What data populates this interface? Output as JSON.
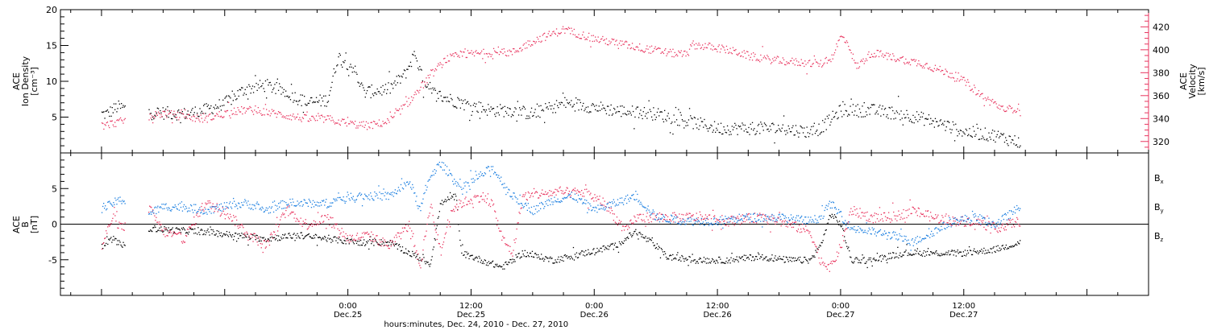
{
  "colors": {
    "black": "#000000",
    "pink": "#e8355f",
    "blue": "#1a7ee0"
  },
  "chart_data": [
    {
      "type": "scatter",
      "panel": "top",
      "left_axis": {
        "label_lines": [
          "ACE",
          "Ion Density",
          "[cm⁻³]"
        ],
        "ticks": [
          "20",
          "15",
          "10",
          "5"
        ],
        "tick_values": [
          20,
          15,
          10,
          5
        ],
        "ylim": [
          0,
          20
        ]
      },
      "right_axis": {
        "label_lines": [
          "ACE",
          "Velocity",
          "[km/s]"
        ],
        "ticks": [
          "420",
          "400",
          "380",
          "360",
          "340",
          "320"
        ],
        "tick_values": [
          420,
          400,
          380,
          360,
          340,
          320
        ],
        "ylim": [
          310,
          435
        ]
      },
      "series": [
        {
          "name": "",
          "axis": "left",
          "color": "#000000",
          "knots": [
            [
              0.0,
              5.5
            ],
            [
              0.5,
              5.5
            ],
            [
              1.0,
              6.0
            ],
            [
              1.5,
              6.5
            ],
            [
              4.0,
              5.8
            ],
            [
              8.0,
              5.5
            ],
            [
              10.0,
              6.0
            ],
            [
              12.0,
              7.0
            ],
            [
              14.0,
              9.0
            ],
            [
              16.0,
              9.5
            ],
            [
              18.0,
              8.5
            ],
            [
              20.0,
              7.0
            ],
            [
              22.0,
              7.5
            ],
            [
              23.0,
              13.5
            ],
            [
              24.5,
              12.0
            ],
            [
              25.5,
              8.5
            ],
            [
              28.0,
              9.0
            ],
            [
              29.5,
              11.0
            ],
            [
              30.5,
              14.0
            ],
            [
              31.5,
              9.0
            ],
            [
              33.0,
              8.0
            ],
            [
              35.0,
              7.0
            ],
            [
              38.0,
              6.0
            ],
            [
              40.0,
              6.0
            ],
            [
              42.0,
              5.5
            ],
            [
              45.0,
              7.0
            ],
            [
              48.0,
              6.5
            ],
            [
              50.0,
              6.0
            ],
            [
              54.0,
              5.5
            ],
            [
              57.0,
              4.5
            ],
            [
              60.0,
              3.5
            ],
            [
              63.0,
              3.5
            ],
            [
              66.0,
              3.5
            ],
            [
              69.0,
              3.0
            ],
            [
              70.0,
              3.5
            ],
            [
              72.0,
              6.0
            ],
            [
              75.0,
              6.0
            ],
            [
              78.0,
              5.5
            ],
            [
              81.0,
              4.5
            ],
            [
              84.0,
              3.0
            ],
            [
              87.0,
              2.5
            ],
            [
              89.5,
              1.5
            ]
          ],
          "gaps": [
            [
              2.3,
              4.5
            ]
          ]
        },
        {
          "name": "",
          "axis": "right",
          "color": "#e8355f",
          "knots": [
            [
              0.0,
              334
            ],
            [
              1.0,
              336
            ],
            [
              2.0,
              338
            ],
            [
              4.5,
              342
            ],
            [
              6.0,
              345
            ],
            [
              8.0,
              342
            ],
            [
              10.0,
              340
            ],
            [
              12.0,
              345
            ],
            [
              14.0,
              348
            ],
            [
              16.0,
              346
            ],
            [
              18.0,
              343
            ],
            [
              20.0,
              340
            ],
            [
              22.0,
              340
            ],
            [
              24.0,
              336
            ],
            [
              26.0,
              334
            ],
            [
              28.0,
              338
            ],
            [
              30.0,
              356
            ],
            [
              32.0,
              378
            ],
            [
              33.5,
              392
            ],
            [
              35.0,
              396
            ],
            [
              38.0,
              398
            ],
            [
              40.0,
              398
            ],
            [
              42.0,
              408
            ],
            [
              45.0,
              418
            ],
            [
              48.0,
              410
            ],
            [
              52.0,
              403
            ],
            [
              55.0,
              398
            ],
            [
              57.0,
              396
            ],
            [
              57.5,
              405
            ],
            [
              60.0,
              402
            ],
            [
              62.0,
              398
            ],
            [
              63.0,
              395
            ],
            [
              65.0,
              392
            ],
            [
              67.0,
              390
            ],
            [
              70.0,
              388
            ],
            [
              71.0,
              392
            ],
            [
              72.0,
              412
            ],
            [
              72.7,
              406
            ],
            [
              73.5,
              385
            ],
            [
              75.0,
              398
            ],
            [
              78.0,
              392
            ],
            [
              80.0,
              388
            ],
            [
              83.0,
              378
            ],
            [
              84.5,
              370
            ],
            [
              86.0,
              358
            ],
            [
              88.0,
              348
            ],
            [
              89.5,
              350
            ]
          ],
          "gaps": [
            [
              2.3,
              4.5
            ]
          ]
        }
      ]
    },
    {
      "type": "scatter",
      "panel": "bottom",
      "left_axis": {
        "label_lines": [
          "ACE",
          "B",
          "[nT]"
        ],
        "ticks": [
          "5",
          "0",
          "-5"
        ],
        "tick_values": [
          5,
          0,
          -5
        ],
        "ylim": [
          -10,
          10
        ]
      },
      "legend": {
        "placement": "right",
        "entries": [
          {
            "base": "B",
            "sub": "x",
            "color": "#000000"
          },
          {
            "base": "B",
            "sub": "y",
            "color": "#1a7ee0"
          },
          {
            "base": "B",
            "sub": "z",
            "color": "#e8355f"
          }
        ]
      },
      "series": [
        {
          "name": "Bx",
          "color": "#000000",
          "knots": [
            [
              0.0,
              -3.0
            ],
            [
              1.0,
              -2.0
            ],
            [
              2.0,
              -3.0
            ],
            [
              4.5,
              -0.5
            ],
            [
              7.0,
              -0.8
            ],
            [
              10.0,
              -1.0
            ],
            [
              13.0,
              -1.5
            ],
            [
              16.0,
              -2.0
            ],
            [
              19.0,
              -1.5
            ],
            [
              22.0,
              -2.0
            ],
            [
              25.0,
              -2.5
            ],
            [
              28.0,
              -2.5
            ],
            [
              30.0,
              -4.0
            ],
            [
              32.0,
              -5.5
            ],
            [
              33.0,
              3.0
            ],
            [
              34.5,
              4.0
            ],
            [
              35.0,
              -4.0
            ],
            [
              37.0,
              -5.0
            ],
            [
              39.0,
              -6.0
            ],
            [
              41.0,
              -4.0
            ],
            [
              44.0,
              -5.0
            ],
            [
              47.0,
              -4.0
            ],
            [
              50.0,
              -3.0
            ],
            [
              52.0,
              -1.0
            ],
            [
              54.0,
              -3.0
            ],
            [
              55.0,
              -4.5
            ],
            [
              58.0,
              -5.0
            ],
            [
              61.0,
              -5.0
            ],
            [
              64.0,
              -4.5
            ],
            [
              67.0,
              -5.0
            ],
            [
              69.0,
              -5.0
            ],
            [
              70.0,
              -3.0
            ],
            [
              71.0,
              1.5
            ],
            [
              72.0,
              0.0
            ],
            [
              73.0,
              -5.0
            ],
            [
              75.0,
              -5.0
            ],
            [
              78.0,
              -4.0
            ],
            [
              81.0,
              -4.0
            ],
            [
              84.0,
              -4.0
            ],
            [
              87.0,
              -3.5
            ],
            [
              89.5,
              -2.5
            ]
          ],
          "gaps": [
            [
              2.3,
              4.5
            ]
          ]
        },
        {
          "name": "By",
          "color": "#1a7ee0",
          "knots": [
            [
              0.0,
              2.5
            ],
            [
              0.5,
              2.5
            ],
            [
              1.0,
              3.0
            ],
            [
              2.0,
              3.5
            ],
            [
              4.5,
              1.5
            ],
            [
              6.0,
              2.5
            ],
            [
              8.0,
              2.5
            ],
            [
              10.0,
              2.0
            ],
            [
              12.0,
              2.5
            ],
            [
              14.0,
              3.0
            ],
            [
              16.0,
              2.0
            ],
            [
              18.0,
              3.0
            ],
            [
              20.0,
              3.0
            ],
            [
              22.0,
              3.0
            ],
            [
              24.0,
              4.0
            ],
            [
              26.0,
              4.0
            ],
            [
              28.0,
              4.0
            ],
            [
              30.0,
              6.0
            ],
            [
              31.0,
              2.0
            ],
            [
              32.0,
              7.0
            ],
            [
              33.0,
              8.5
            ],
            [
              34.0,
              7.0
            ],
            [
              35.0,
              5.0
            ],
            [
              36.0,
              6.0
            ],
            [
              38.0,
              8.0
            ],
            [
              40.0,
              4.0
            ],
            [
              42.0,
              2.0
            ],
            [
              44.0,
              3.5
            ],
            [
              46.0,
              4.0
            ],
            [
              48.0,
              2.0
            ],
            [
              50.0,
              3.0
            ],
            [
              52.0,
              4.0
            ],
            [
              54.0,
              1.0
            ],
            [
              57.0,
              0.5
            ],
            [
              60.0,
              0.5
            ],
            [
              63.0,
              1.0
            ],
            [
              66.0,
              1.0
            ],
            [
              69.0,
              0.5
            ],
            [
              70.0,
              1.0
            ],
            [
              71.0,
              3.0
            ],
            [
              73.0,
              -0.5
            ],
            [
              75.0,
              -1.0
            ],
            [
              77.0,
              -1.5
            ],
            [
              79.0,
              -2.5
            ],
            [
              81.0,
              -1.0
            ],
            [
              83.0,
              0.5
            ],
            [
              85.0,
              1.0
            ],
            [
              87.0,
              0.0
            ],
            [
              89.5,
              2.5
            ]
          ],
          "gaps": [
            [
              2.3,
              4.5
            ]
          ]
        },
        {
          "name": "Bz",
          "color": "#e8355f",
          "knots": [
            [
              0.0,
              -3.0
            ],
            [
              1.0,
              1.0
            ],
            [
              2.0,
              -0.5
            ],
            [
              4.5,
              2.5
            ],
            [
              6.0,
              -1.0
            ],
            [
              8.0,
              -2.0
            ],
            [
              10.0,
              3.0
            ],
            [
              12.0,
              2.0
            ],
            [
              14.0,
              -1.0
            ],
            [
              16.0,
              -3.0
            ],
            [
              18.0,
              2.0
            ],
            [
              20.0,
              0.0
            ],
            [
              22.0,
              1.0
            ],
            [
              24.0,
              -2.0
            ],
            [
              26.0,
              -1.5
            ],
            [
              28.0,
              -3.0
            ],
            [
              30.0,
              0.0
            ],
            [
              31.0,
              -6.0
            ],
            [
              32.0,
              3.0
            ],
            [
              33.0,
              -4.0
            ],
            [
              34.0,
              2.0
            ],
            [
              35.0,
              3.0
            ],
            [
              37.0,
              4.0
            ],
            [
              38.0,
              3.0
            ],
            [
              39.0,
              -2.0
            ],
            [
              40.0,
              -4.0
            ],
            [
              41.0,
              4.0
            ],
            [
              44.0,
              4.5
            ],
            [
              47.0,
              4.5
            ],
            [
              49.0,
              3.0
            ],
            [
              51.0,
              -1.0
            ],
            [
              52.0,
              1.0
            ],
            [
              55.0,
              1.0
            ],
            [
              58.0,
              1.0
            ],
            [
              61.0,
              0.5
            ],
            [
              64.0,
              1.0
            ],
            [
              66.0,
              0.5
            ],
            [
              69.0,
              -1.0
            ],
            [
              70.0,
              -5.0
            ],
            [
              71.0,
              -6.0
            ],
            [
              72.0,
              -3.0
            ],
            [
              73.0,
              2.0
            ],
            [
              75.0,
              1.0
            ],
            [
              77.0,
              1.0
            ],
            [
              79.0,
              2.0
            ],
            [
              81.0,
              1.0
            ],
            [
              83.0,
              0.5
            ],
            [
              85.0,
              0.5
            ],
            [
              87.0,
              -0.5
            ],
            [
              89.5,
              0.5
            ]
          ],
          "gaps": [
            [
              2.3,
              4.5
            ]
          ]
        }
      ]
    }
  ],
  "x_axis": {
    "label": "hours:minutes, Dec. 24, 2010 - Dec. 27, 2010",
    "range_hours": [
      -4,
      102
    ],
    "ticks": [
      {
        "hours": 24,
        "time": "0:00",
        "date": "Dec.25"
      },
      {
        "hours": 36,
        "time": "12:00",
        "date": "Dec.25"
      },
      {
        "hours": 48,
        "time": "0:00",
        "date": "Dec.26"
      },
      {
        "hours": 60,
        "time": "12:00",
        "date": "Dec.26"
      },
      {
        "hours": 72,
        "time": "0:00",
        "date": "Dec.27"
      },
      {
        "hours": 84,
        "time": "12:00",
        "date": "Dec.27"
      }
    ]
  }
}
